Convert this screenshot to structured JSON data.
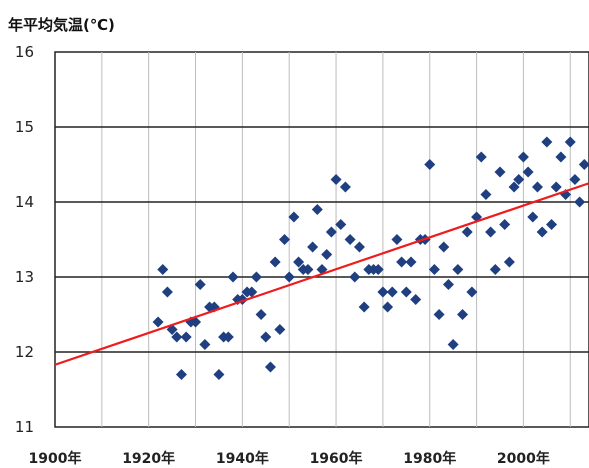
{
  "chart_data": {
    "type": "scatter",
    "ylabel": "年平均気温(℃)",
    "xlim": [
      1900,
      2014
    ],
    "ylim": [
      11,
      16
    ],
    "x_ticks": [
      1900,
      1910,
      1920,
      1930,
      1940,
      1950,
      1960,
      1970,
      1980,
      1990,
      2000,
      2010
    ],
    "x_tick_labels": [
      "1900年",
      "",
      "1920年",
      "",
      "1940年",
      "",
      "1960年",
      "",
      "1980年",
      "",
      "2000年",
      ""
    ],
    "y_ticks": [
      11,
      12,
      13,
      14,
      15,
      16
    ],
    "grid": true,
    "marker_color": "#1f3f80",
    "trend_color": "#ee1c1c",
    "trend_line": {
      "x": [
        1900,
        2014
      ],
      "y": [
        11.83,
        14.25
      ]
    },
    "series": [
      {
        "x": [
          1922,
          1923,
          1924,
          1925,
          1926,
          1927,
          1928,
          1929,
          1930,
          1931,
          1932,
          1933,
          1934,
          1935,
          1936,
          1937,
          1938,
          1939,
          1940,
          1941,
          1942,
          1943,
          1944,
          1945,
          1946,
          1947,
          1948,
          1949,
          1950,
          1951,
          1952,
          1953,
          1954,
          1955,
          1956,
          1957,
          1958,
          1959,
          1960,
          1961,
          1962,
          1963,
          1964,
          1965,
          1966,
          1967,
          1968,
          1969,
          1970,
          1971,
          1972,
          1973,
          1974,
          1975,
          1976,
          1977,
          1978,
          1979,
          1980,
          1981,
          1982,
          1983,
          1984,
          1985,
          1986,
          1987,
          1988,
          1989,
          1990,
          1991,
          1992,
          1993,
          1994,
          1995,
          1996,
          1997,
          1998,
          1999,
          2000,
          2001,
          2002,
          2003,
          2004,
          2005,
          2006,
          2007,
          2008,
          2009,
          2010,
          2011,
          2012,
          2013
        ],
        "y": [
          12.4,
          13.1,
          12.8,
          12.3,
          12.2,
          11.7,
          12.2,
          12.4,
          12.4,
          12.9,
          12.1,
          12.6,
          12.6,
          11.7,
          12.2,
          12.2,
          13.0,
          12.7,
          12.7,
          12.8,
          12.8,
          13.0,
          12.5,
          12.2,
          11.8,
          13.2,
          12.3,
          13.5,
          13.0,
          13.8,
          13.2,
          13.1,
          13.1,
          13.4,
          13.9,
          13.1,
          13.3,
          13.6,
          14.3,
          13.7,
          14.2,
          13.5,
          13.0,
          13.4,
          12.6,
          13.1,
          13.1,
          13.1,
          12.8,
          12.6,
          12.8,
          13.5,
          13.2,
          12.8,
          13.2,
          12.7,
          13.5,
          13.5,
          14.5,
          13.1,
          12.5,
          13.4,
          12.9,
          12.1,
          13.1,
          12.5,
          13.6,
          12.8,
          13.8,
          14.6,
          14.1,
          13.6,
          13.1,
          14.4,
          13.7,
          13.2,
          14.2,
          14.3,
          14.6,
          14.4,
          13.8,
          14.2,
          13.6,
          14.8,
          13.7,
          14.2,
          14.6,
          14.1,
          14.8,
          14.3,
          14.0,
          14.5
        ]
      }
    ]
  }
}
